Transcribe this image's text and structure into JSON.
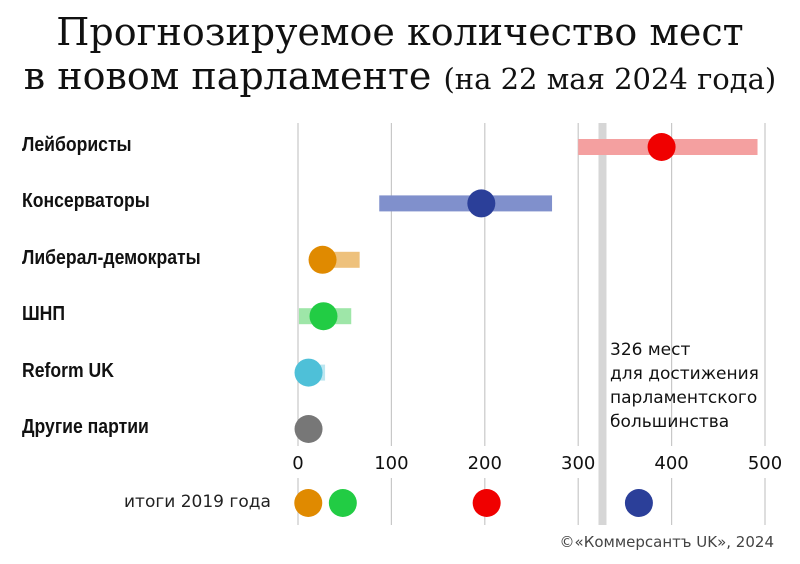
{
  "chart_data": {
    "type": "range-dot",
    "title_line1": "Прогнозируемое количество мест",
    "title_line2": "в новом парламенте",
    "title_subtitle": "(на 22 мая 2024 года)",
    "x_ticks": [
      0,
      100,
      200,
      300,
      400,
      500
    ],
    "xlim": [
      0,
      500
    ],
    "majority": {
      "value": 326,
      "label_lines": [
        "326 мест",
        "для достижения",
        "парламентского",
        "большинства"
      ]
    },
    "series": [
      {
        "name": "Лейбористы",
        "low": 300,
        "high": 492,
        "projection": 385,
        "color": "#f00000",
        "range_color": "#f4a0a0",
        "result_2019": 202
      },
      {
        "name": "Консерваторы",
        "low": 87,
        "high": 272,
        "projection": 192,
        "color": "#2b3f99",
        "range_color": "#8090cc",
        "result_2019": 365
      },
      {
        "name": "Либерал-демократы",
        "low": 22,
        "high": 66,
        "projection": 22,
        "color": "#e08a00",
        "range_color": "#eec17c",
        "result_2019": 11
      },
      {
        "name": "ШНП",
        "low": 1,
        "high": 57,
        "projection": 23,
        "color": "#22cc44",
        "range_color": "#9ee6a8",
        "result_2019": 48
      },
      {
        "name": "Reform UK",
        "low": 0,
        "high": 29,
        "projection": 7,
        "color": "#4ec0d8",
        "range_color": "#bce6f0",
        "result_2019": null
      },
      {
        "name": "Другие партии",
        "low": null,
        "high": null,
        "projection": 7,
        "color": "#777777",
        "range_color": "#cccccc",
        "result_2019": null
      }
    ],
    "legend_2019_label": "итоги 2019 года",
    "legend_2019_colors": [
      "#e08a00",
      "#22cc44",
      "#f00000",
      "#2b3f99"
    ],
    "grid": true
  },
  "credit": "©«Коммерсантъ UK», 2024"
}
